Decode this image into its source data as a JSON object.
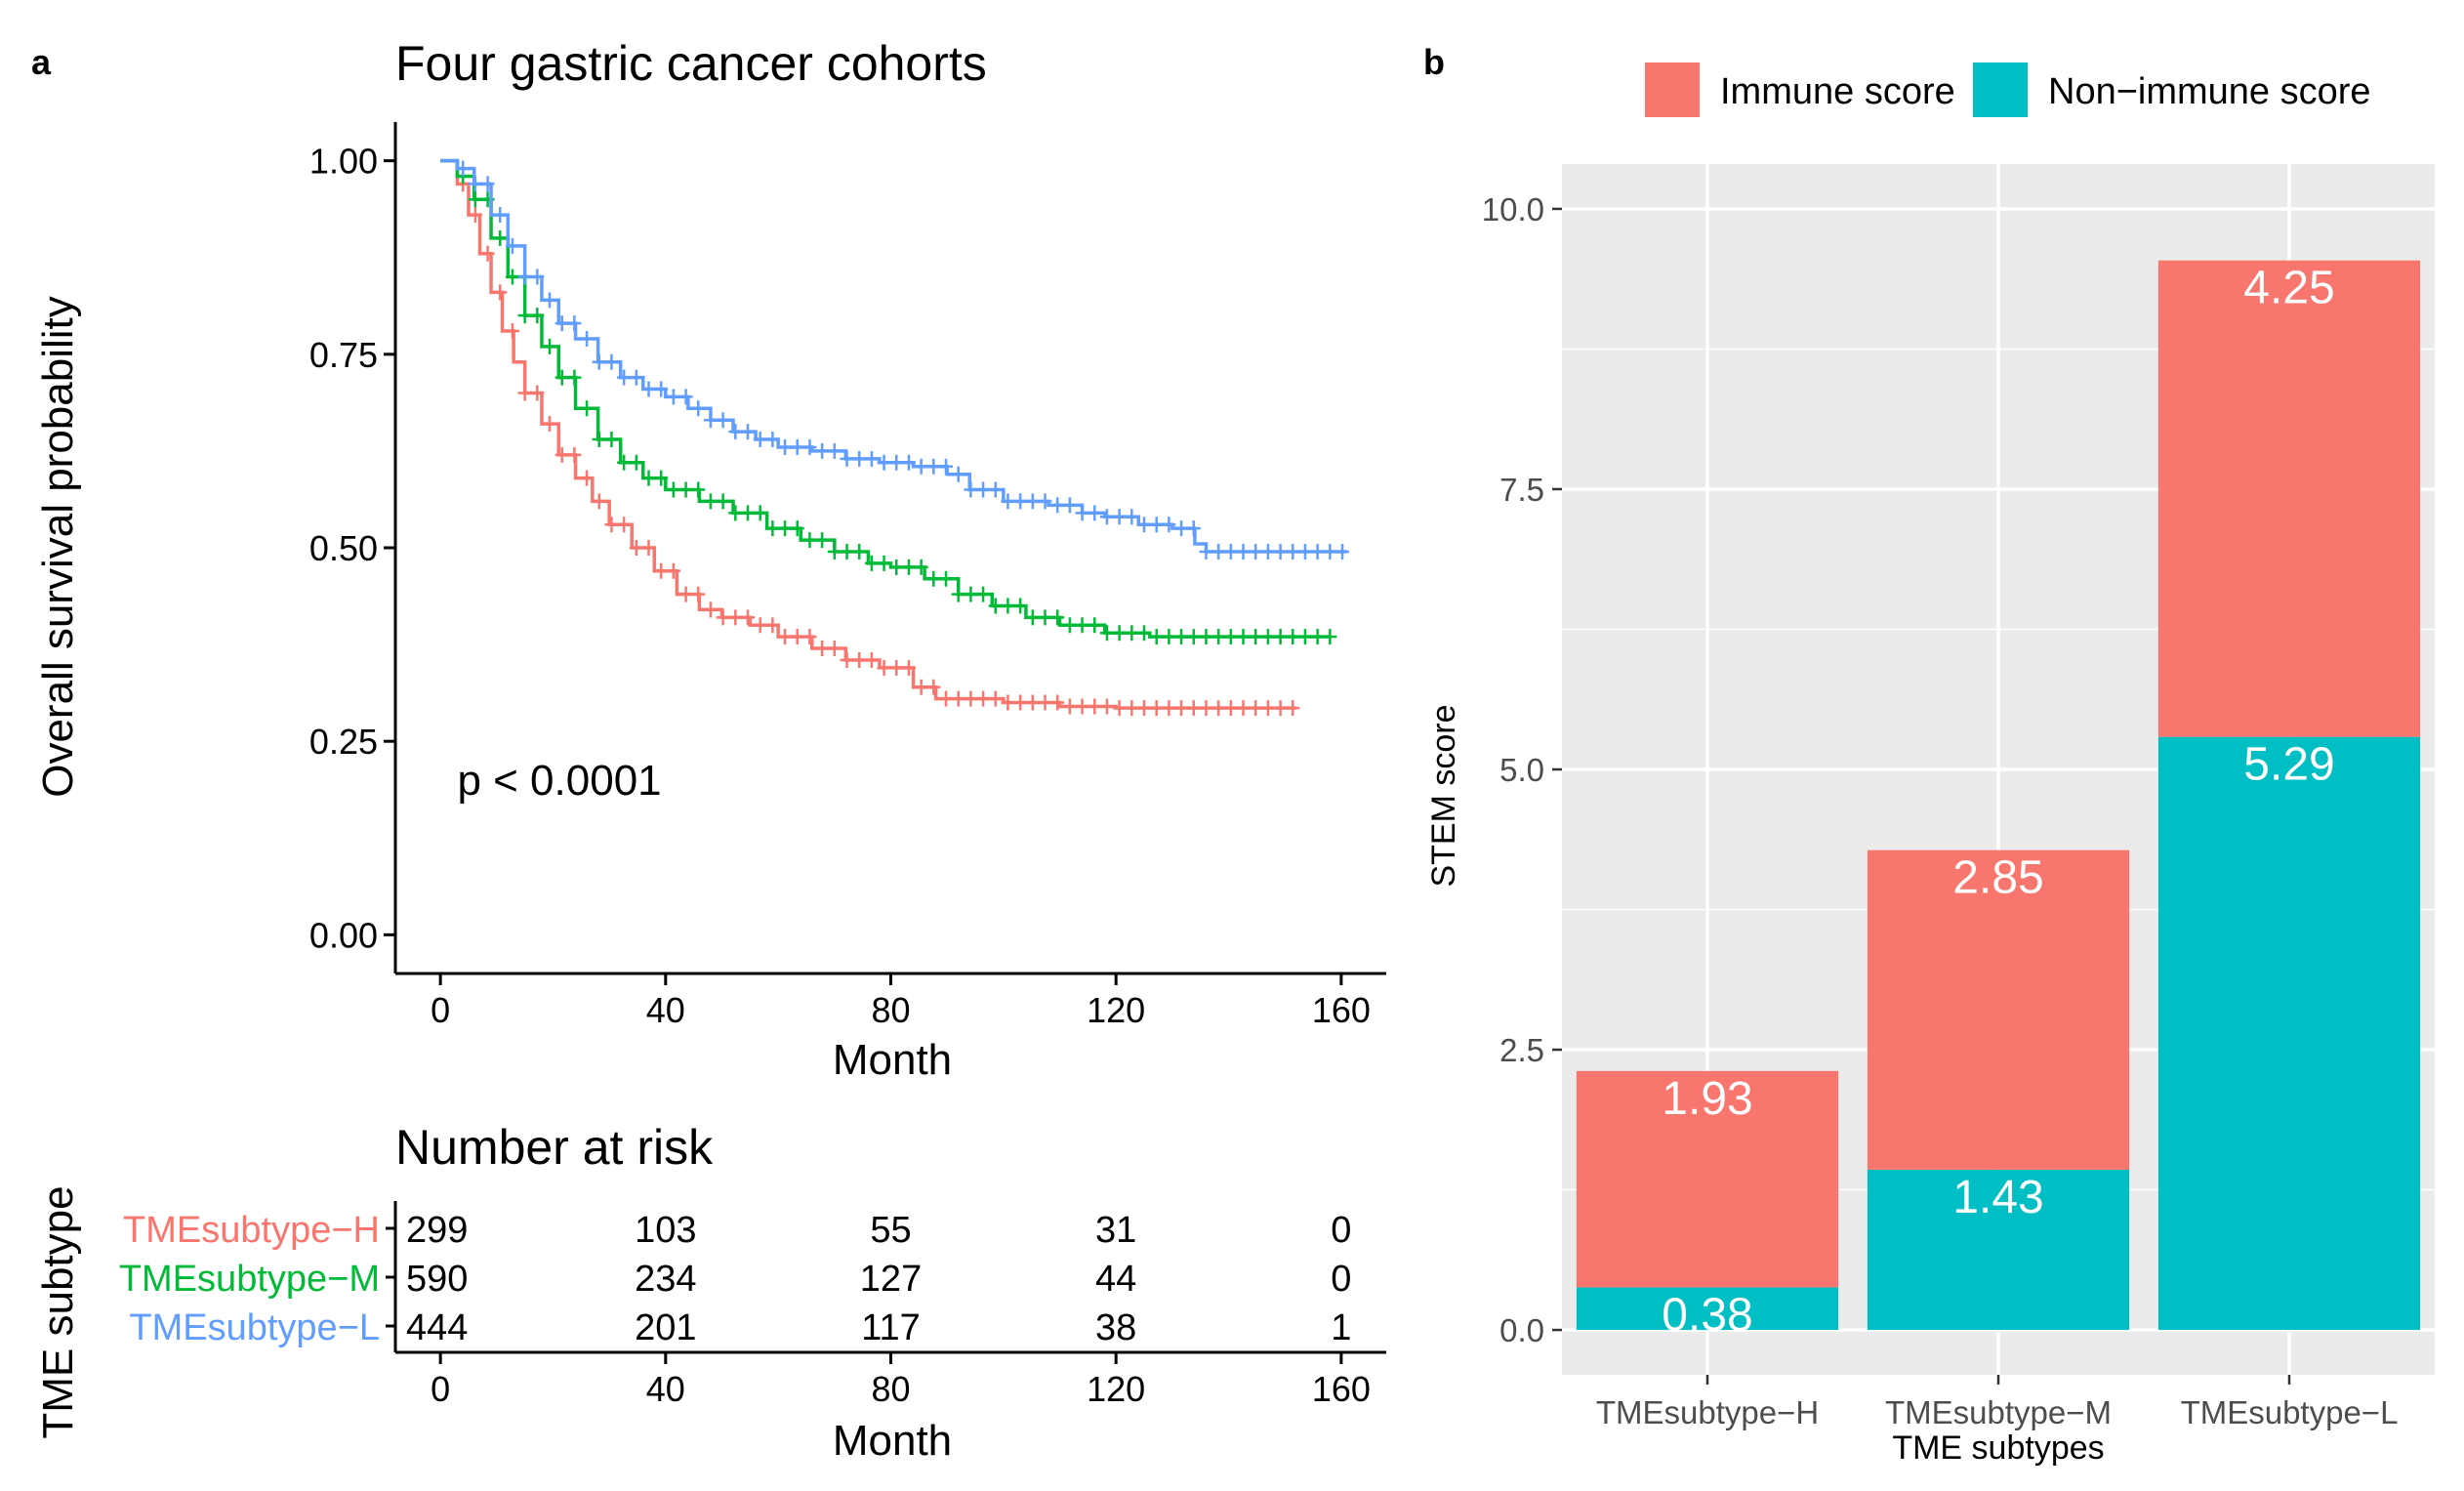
{
  "panel_labels": {
    "a": "a",
    "b": "b"
  },
  "colors": {
    "high": "#F8766D",
    "mid": "#00BA38",
    "low": "#619CFF",
    "immune": "#F8766D",
    "nonimmune": "#00BFC4",
    "panel_bg": "#EBEBEB",
    "grid": "#FFFFFF",
    "axis": "#000000",
    "tick_text_b": "#4D4D4D",
    "bar_label": "#FFFFFF"
  },
  "chart_data": [
    {
      "type": "line",
      "title": "Four gastric cancer cohorts",
      "xlabel": "Month",
      "ylabel": "Overall survival probability",
      "xlim": [
        -8,
        168
      ],
      "ylim": [
        -0.05,
        1.05
      ],
      "x_ticks": [
        "0",
        "40",
        "80",
        "120",
        "160"
      ],
      "x_tick_values": [
        0,
        40,
        80,
        120,
        160
      ],
      "y_ticks": [
        "0.00",
        "0.25",
        "0.50",
        "0.75",
        "1.00"
      ],
      "y_tick_values": [
        0.0,
        0.25,
        0.5,
        0.75,
        1.0
      ],
      "annotation": "p < 0.0001",
      "annotation_at": [
        3,
        0.2
      ],
      "series": [
        {
          "name": "TMEsubtype-H",
          "color_key": "high",
          "points": [
            [
              0,
              1.0
            ],
            [
              3,
              0.97
            ],
            [
              5,
              0.93
            ],
            [
              7,
              0.88
            ],
            [
              9,
              0.83
            ],
            [
              11,
              0.78
            ],
            [
              13,
              0.74
            ],
            [
              15,
              0.7
            ],
            [
              18,
              0.66
            ],
            [
              21,
              0.62
            ],
            [
              24,
              0.59
            ],
            [
              27,
              0.56
            ],
            [
              30,
              0.53
            ],
            [
              34,
              0.5
            ],
            [
              38,
              0.47
            ],
            [
              42,
              0.44
            ],
            [
              46,
              0.42
            ],
            [
              50,
              0.41
            ],
            [
              55,
              0.4
            ],
            [
              60,
              0.385
            ],
            [
              66,
              0.37
            ],
            [
              72,
              0.355
            ],
            [
              78,
              0.345
            ],
            [
              84,
              0.32
            ],
            [
              88,
              0.305
            ],
            [
              92,
              0.305
            ],
            [
              100,
              0.3
            ],
            [
              110,
              0.295
            ],
            [
              120,
              0.293
            ],
            [
              140,
              0.293
            ],
            [
              152,
              0.293
            ]
          ]
        },
        {
          "name": "TMEsubtype-M",
          "color_key": "mid",
          "points": [
            [
              0,
              1.0
            ],
            [
              3,
              0.98
            ],
            [
              6,
              0.95
            ],
            [
              9,
              0.9
            ],
            [
              12,
              0.85
            ],
            [
              15,
              0.8
            ],
            [
              18,
              0.76
            ],
            [
              21,
              0.72
            ],
            [
              24,
              0.68
            ],
            [
              28,
              0.64
            ],
            [
              32,
              0.61
            ],
            [
              36,
              0.59
            ],
            [
              40,
              0.575
            ],
            [
              46,
              0.56
            ],
            [
              52,
              0.545
            ],
            [
              58,
              0.525
            ],
            [
              64,
              0.51
            ],
            [
              70,
              0.495
            ],
            [
              76,
              0.48
            ],
            [
              80,
              0.475
            ],
            [
              86,
              0.46
            ],
            [
              92,
              0.44
            ],
            [
              98,
              0.425
            ],
            [
              104,
              0.41
            ],
            [
              110,
              0.4
            ],
            [
              118,
              0.39
            ],
            [
              126,
              0.385
            ],
            [
              140,
              0.385
            ],
            [
              158,
              0.385
            ]
          ]
        },
        {
          "name": "TMEsubtype-L",
          "color_key": "low",
          "points": [
            [
              0,
              1.0
            ],
            [
              3,
              0.99
            ],
            [
              6,
              0.97
            ],
            [
              9,
              0.93
            ],
            [
              12,
              0.89
            ],
            [
              15,
              0.85
            ],
            [
              18,
              0.82
            ],
            [
              21,
              0.79
            ],
            [
              24,
              0.77
            ],
            [
              28,
              0.74
            ],
            [
              32,
              0.72
            ],
            [
              36,
              0.705
            ],
            [
              40,
              0.695
            ],
            [
              44,
              0.68
            ],
            [
              48,
              0.665
            ],
            [
              52,
              0.65
            ],
            [
              56,
              0.64
            ],
            [
              60,
              0.63
            ],
            [
              66,
              0.625
            ],
            [
              72,
              0.615
            ],
            [
              78,
              0.61
            ],
            [
              84,
              0.605
            ],
            [
              90,
              0.595
            ],
            [
              94,
              0.575
            ],
            [
              100,
              0.56
            ],
            [
              108,
              0.555
            ],
            [
              114,
              0.545
            ],
            [
              118,
              0.54
            ],
            [
              124,
              0.53
            ],
            [
              130,
              0.525
            ],
            [
              134,
              0.505
            ],
            [
              136,
              0.495
            ],
            [
              150,
              0.495
            ],
            [
              161,
              0.495
            ]
          ]
        }
      ]
    },
    {
      "type": "table",
      "title": "Number at risk",
      "ylabel": "TME subtype",
      "xlabel": "Month",
      "x_ticks": [
        "0",
        "40",
        "80",
        "120",
        "160"
      ],
      "x_tick_values": [
        0,
        40,
        80,
        120,
        160
      ],
      "rows": [
        {
          "name": "TMEsubtype−H",
          "color_key": "high",
          "values": [
            "299",
            "103",
            "55",
            "31",
            "0"
          ]
        },
        {
          "name": "TMEsubtype−M",
          "color_key": "mid",
          "values": [
            "590",
            "234",
            "127",
            "44",
            "0"
          ]
        },
        {
          "name": "TMEsubtype−L",
          "color_key": "low",
          "values": [
            "444",
            "201",
            "117",
            "38",
            "1"
          ]
        }
      ]
    },
    {
      "type": "bar",
      "stacked": true,
      "xlabel": "TME subtypes",
      "ylabel": "STEM score",
      "ylim": [
        -0.4,
        10.4
      ],
      "y_ticks": [
        "0.0",
        "2.5",
        "5.0",
        "7.5",
        "10.0"
      ],
      "y_tick_values": [
        0.0,
        2.5,
        5.0,
        7.5,
        10.0
      ],
      "categories": [
        "TMEsubtype−H",
        "TMEsubtype−M",
        "TMEsubtype−L"
      ],
      "legend": [
        "Immune score",
        "Non−immune score"
      ],
      "legend_position": "top",
      "series": [
        {
          "name": "Non-immune score",
          "color_key": "nonimmune",
          "values": [
            0.38,
            1.43,
            5.29
          ],
          "labels": [
            "0.38",
            "1.43",
            "5.29"
          ]
        },
        {
          "name": "Immune score",
          "color_key": "immune",
          "values": [
            1.93,
            2.85,
            4.25
          ],
          "labels": [
            "1.93",
            "2.85",
            "4.25"
          ]
        }
      ]
    }
  ]
}
